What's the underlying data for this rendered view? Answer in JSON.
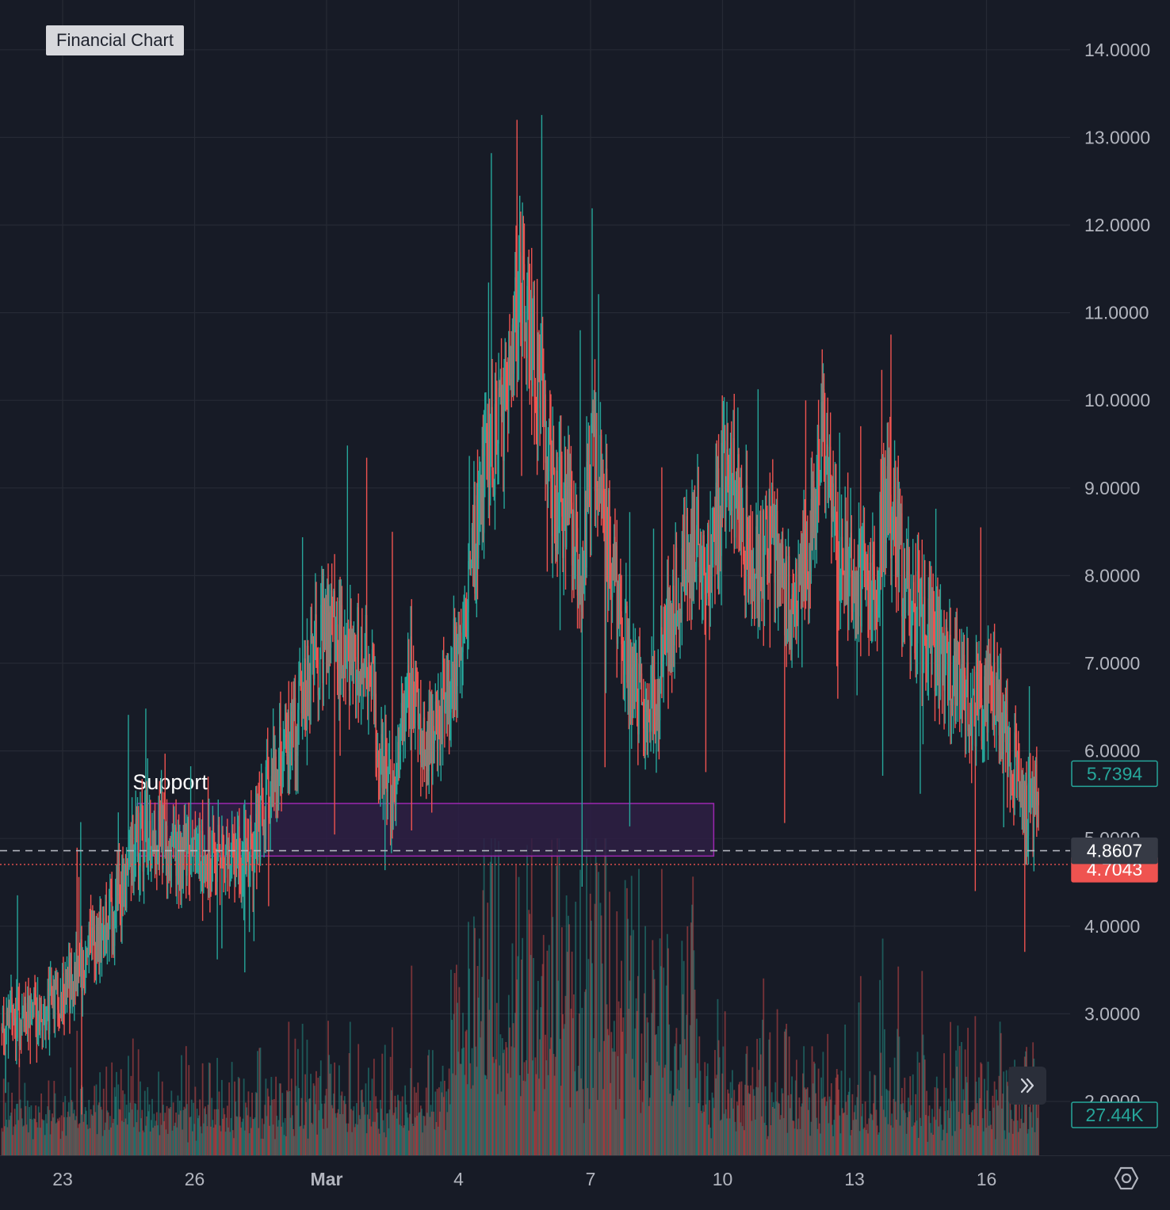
{
  "chart_data": {
    "type": "candlestick",
    "title": "Financial Chart",
    "ylim": [
      1.4,
      14.5
    ],
    "y_ticks": [
      "14.0000",
      "13.0000",
      "12.0000",
      "11.0000",
      "10.0000",
      "9.0000",
      "8.0000",
      "7.0000",
      "6.0000",
      "5.0000",
      "4.0000",
      "3.0000",
      "2.0000"
    ],
    "x_ticks": [
      "23",
      "26",
      "Mar",
      "4",
      "7",
      "10",
      "13",
      "16"
    ],
    "x_tick_days": [
      23,
      26,
      29,
      32,
      35,
      38,
      41,
      44
    ],
    "xlim_days": [
      21.6,
      46
    ],
    "grid": true,
    "price_labels": {
      "current": "4.8607",
      "green": "5.7394",
      "red": "4.7043",
      "volume": "27.44K"
    },
    "price_levels": {
      "current": 4.8607,
      "green": 5.7394,
      "red": 4.7043
    },
    "annotation": {
      "text": "Support",
      "x_start_day": 24.7,
      "x_end_day": 37.8,
      "y_top": 5.4,
      "y_bottom": 4.8
    },
    "colors": {
      "up": "#26a69a",
      "down": "#ef5350",
      "background": "#171b26",
      "grid": "#262a35",
      "axis_text": "#b2b5be",
      "support_fill": "#2e1f44",
      "support_border": "#9c27b0",
      "current_price_bg": "#363a45"
    },
    "price_path_keypoints": [
      [
        21.6,
        2.85
      ],
      [
        22.5,
        2.95
      ],
      [
        23.5,
        3.6
      ],
      [
        24.2,
        4.15
      ],
      [
        24.6,
        4.85
      ],
      [
        25.0,
        5.15
      ],
      [
        25.5,
        4.9
      ],
      [
        26.2,
        4.75
      ],
      [
        26.8,
        4.8
      ],
      [
        27.3,
        4.85
      ],
      [
        27.7,
        5.55
      ],
      [
        28.2,
        6.1
      ],
      [
        28.7,
        7.0
      ],
      [
        29.1,
        7.5
      ],
      [
        29.5,
        7.1
      ],
      [
        29.9,
        7.15
      ],
      [
        30.2,
        6.3
      ],
      [
        30.5,
        5.35
      ],
      [
        30.9,
        6.9
      ],
      [
        31.3,
        6.05
      ],
      [
        31.7,
        6.6
      ],
      [
        32.1,
        7.35
      ],
      [
        32.6,
        9.05
      ],
      [
        33.1,
        10.1
      ],
      [
        33.3,
        11.2
      ],
      [
        33.6,
        11.15
      ],
      [
        33.9,
        9.9
      ],
      [
        34.2,
        8.9
      ],
      [
        34.6,
        8.55
      ],
      [
        34.8,
        8.0
      ],
      [
        35.1,
        9.55
      ],
      [
        35.5,
        8.15
      ],
      [
        35.9,
        6.9
      ],
      [
        36.2,
        6.4
      ],
      [
        36.6,
        6.9
      ],
      [
        37.0,
        7.9
      ],
      [
        37.4,
        8.45
      ],
      [
        37.8,
        8.2
      ],
      [
        38.1,
        9.3
      ],
      [
        38.4,
        8.7
      ],
      [
        38.8,
        8.1
      ],
      [
        39.2,
        8.35
      ],
      [
        39.6,
        7.5
      ],
      [
        40.0,
        8.5
      ],
      [
        40.3,
        9.75
      ],
      [
        40.7,
        8.2
      ],
      [
        41.1,
        7.9
      ],
      [
        41.5,
        8.0
      ],
      [
        41.8,
        8.95
      ],
      [
        42.2,
        7.8
      ],
      [
        42.6,
        7.35
      ],
      [
        43.0,
        7.05
      ],
      [
        43.4,
        6.75
      ],
      [
        43.8,
        6.4
      ],
      [
        44.2,
        6.75
      ],
      [
        44.6,
        5.95
      ],
      [
        44.9,
        5.3
      ],
      [
        45.2,
        5.45
      ]
    ]
  }
}
